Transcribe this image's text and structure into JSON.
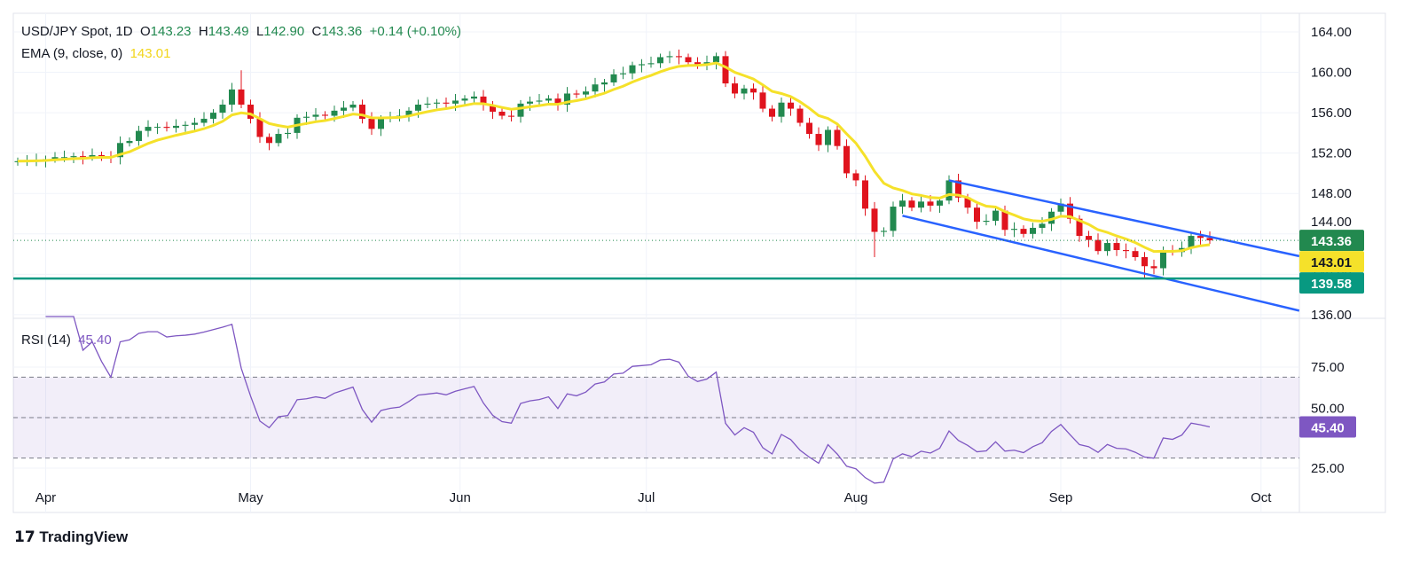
{
  "header": {
    "symbol": "USD/JPY Spot, 1D",
    "o_label": "O",
    "o": "143.23",
    "h_label": "H",
    "h": "143.49",
    "l_label": "L",
    "l": "142.90",
    "c_label": "C",
    "c": "143.36",
    "change": "+0.14 (+0.10%)",
    "ema_label": "EMA (9, close, 0)",
    "ema_value": "143.01"
  },
  "rsi": {
    "label": "RSI (14)",
    "value": "45.40"
  },
  "brand": "TradingView",
  "colors": {
    "up": "#22894f",
    "down": "#e0141e",
    "ema": "#f5e12a",
    "channel": "#2962ff",
    "support": "#089981",
    "rsi": "#7e57c2"
  },
  "chart_data": {
    "type": "candlestick",
    "title": "USD/JPY Spot, 1D",
    "price_axis": {
      "ticks": [
        136,
        140,
        144,
        148,
        152,
        156,
        160,
        164
      ],
      "tick_labels": [
        "136.00",
        "140.00",
        "144.00",
        "148.00",
        "152.00",
        "156.00",
        "160.00",
        "164.00"
      ],
      "range": [
        135.8,
        165.8
      ]
    },
    "rsi_axis": {
      "tick_labels": [
        "25.00",
        "50.00",
        "75.00"
      ],
      "ticks": [
        25,
        50,
        75
      ],
      "levels": [
        30,
        50,
        70
      ],
      "range": [
        10,
        100
      ]
    },
    "x_axis": {
      "labels": [
        {
          "text": "Apr",
          "index": 3
        },
        {
          "text": "May",
          "index": 25
        },
        {
          "text": "Jun",
          "index": 47.5
        },
        {
          "text": "Jul",
          "index": 67.5
        },
        {
          "text": "Aug",
          "index": 90
        },
        {
          "text": "Sep",
          "index": 112
        },
        {
          "text": "Oct",
          "index": 133.5
        }
      ]
    },
    "closes": [
      151.2,
      151.3,
      151.3,
      151.4,
      151.6,
      151.6,
      151.7,
      151.6,
      151.8,
      151.7,
      151.6,
      153.0,
      153.2,
      154.2,
      154.6,
      154.6,
      154.5,
      154.7,
      154.8,
      155.0,
      155.4,
      156.0,
      156.8,
      158.3,
      156.8,
      155.4,
      153.6,
      153.0,
      153.9,
      154.0,
      155.5,
      155.6,
      155.8,
      155.7,
      156.2,
      156.5,
      156.8,
      155.4,
      154.4,
      155.4,
      155.6,
      155.7,
      156.2,
      156.8,
      156.9,
      157.0,
      156.9,
      157.2,
      157.4,
      157.6,
      156.8,
      156.1,
      155.7,
      155.6,
      156.9,
      157.1,
      157.2,
      157.4,
      156.8,
      157.9,
      157.8,
      158.1,
      158.8,
      159.0,
      159.8,
      159.9,
      160.7,
      160.8,
      160.9,
      161.5,
      161.6,
      161.5,
      161.0,
      160.8,
      161.0,
      161.6,
      158.9,
      157.9,
      158.4,
      158.0,
      156.4,
      155.6,
      157.0,
      156.4,
      155.0,
      153.9,
      152.8,
      154.3,
      152.7,
      150.0,
      149.3,
      146.5,
      144.2,
      144.3,
      146.7,
      147.3,
      146.6,
      147.2,
      146.8,
      147.3,
      149.3,
      147.6,
      146.6,
      145.2,
      145.3,
      146.3,
      144.4,
      144.5,
      144.0,
      144.6,
      145.0,
      146.2,
      147.0,
      145.5,
      143.8,
      143.4,
      142.3,
      143.1,
      142.4,
      142.3,
      141.7,
      140.8,
      140.6,
      142.4,
      142.2,
      142.6,
      143.8,
      143.6,
      143.36
    ],
    "special": {
      "24": {
        "high": 160.2
      },
      "92": {
        "low": 141.7
      },
      "121": {
        "low": 139.6
      }
    },
    "ema_period": 9,
    "rsi_period": 14,
    "channel_upper": [
      [
        100,
        149.3
      ],
      [
        137.6,
        141.8
      ]
    ],
    "channel_lower": [
      [
        95,
        145.8
      ],
      [
        137.6,
        136.4
      ]
    ],
    "support_level": 139.58,
    "last_price": 143.36,
    "price_labels": [
      {
        "text": "143.36",
        "kind": "last"
      },
      {
        "text": "143.01",
        "kind": "ema"
      },
      {
        "text": "139.58",
        "kind": "support"
      }
    ],
    "rsi_last_label": "45.40"
  }
}
